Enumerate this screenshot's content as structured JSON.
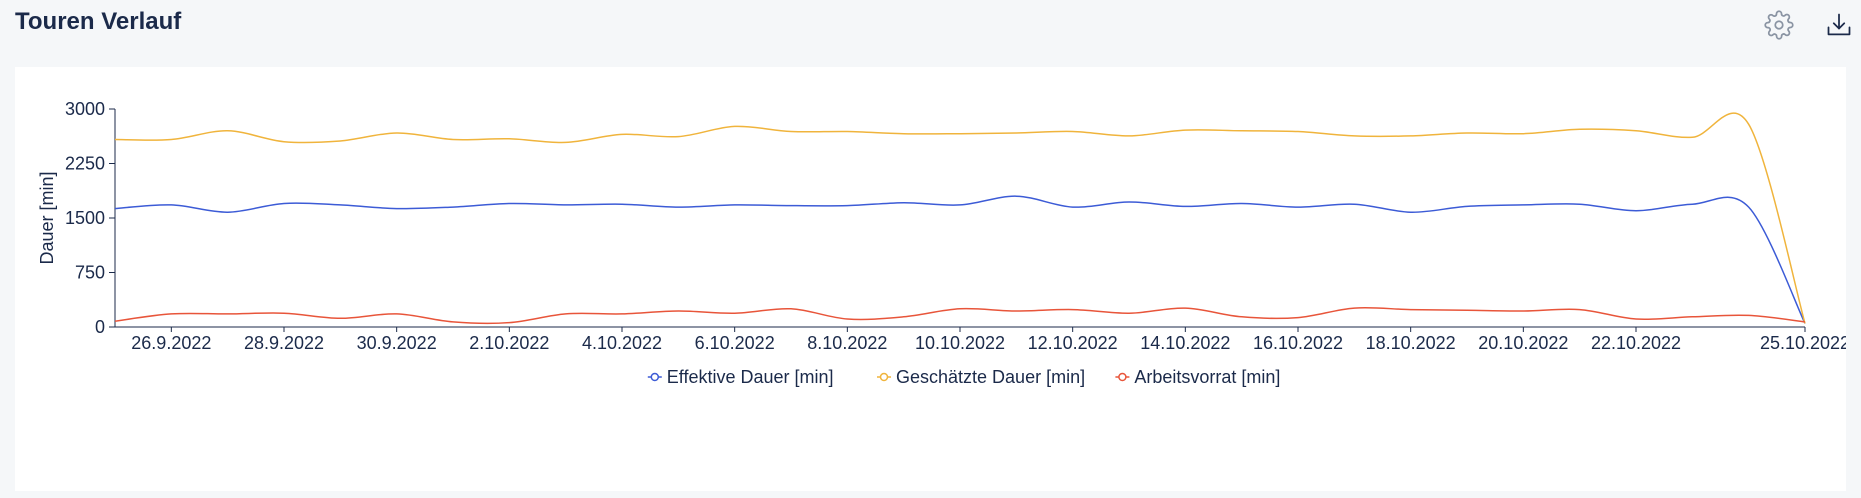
{
  "header": {
    "title": "Touren Verlauf",
    "settings_icon": "gear-icon",
    "download_icon": "download-icon"
  },
  "colors": {
    "axis": "#1b2a4a",
    "text": "#1b2a4a",
    "icon": "#8a94a3",
    "download_icon": "#1b2a4a"
  },
  "chart_data": {
    "type": "line",
    "title": "",
    "xlabel": "",
    "ylabel": "Dauer [min]",
    "ylim": [
      0,
      3000
    ],
    "yticks": [
      0,
      750,
      1500,
      2250,
      3000
    ],
    "grid": false,
    "legend_position": "bottom-center",
    "x_tick_labels": [
      "26.9.2022",
      "28.9.2022",
      "30.9.2022",
      "2.10.2022",
      "4.10.2022",
      "6.10.2022",
      "8.10.2022",
      "10.10.2022",
      "12.10.2022",
      "14.10.2022",
      "16.10.2022",
      "18.10.2022",
      "20.10.2022",
      "22.10.2022",
      "25.10.2022"
    ],
    "x": [
      "25.9.2022",
      "26.9.2022",
      "27.9.2022",
      "28.9.2022",
      "29.9.2022",
      "30.9.2022",
      "1.10.2022",
      "2.10.2022",
      "3.10.2022",
      "4.10.2022",
      "5.10.2022",
      "6.10.2022",
      "7.10.2022",
      "8.10.2022",
      "9.10.2022",
      "10.10.2022",
      "11.10.2022",
      "12.10.2022",
      "13.10.2022",
      "14.10.2022",
      "15.10.2022",
      "16.10.2022",
      "17.10.2022",
      "18.10.2022",
      "19.10.2022",
      "20.10.2022",
      "21.10.2022",
      "22.10.2022",
      "23.10.2022",
      "24.10.2022",
      "25.10.2022"
    ],
    "series": [
      {
        "name": "Effektive Dauer [min]",
        "color": "#3c5bd6",
        "values": [
          1630,
          1680,
          1580,
          1700,
          1680,
          1630,
          1650,
          1700,
          1680,
          1690,
          1650,
          1680,
          1670,
          1670,
          1710,
          1680,
          1800,
          1650,
          1720,
          1660,
          1700,
          1650,
          1690,
          1580,
          1660,
          1680,
          1690,
          1600,
          1690,
          1650,
          50
        ]
      },
      {
        "name": "Geschätzte Dauer [min]",
        "color": "#f0b43c",
        "values": [
          2580,
          2580,
          2700,
          2550,
          2560,
          2670,
          2580,
          2590,
          2540,
          2650,
          2620,
          2760,
          2690,
          2690,
          2660,
          2660,
          2670,
          2690,
          2630,
          2710,
          2700,
          2690,
          2630,
          2630,
          2670,
          2660,
          2720,
          2700,
          2610,
          2790,
          50
        ]
      },
      {
        "name": "Arbeitsvorrat [min]",
        "color": "#e8553a",
        "values": [
          80,
          180,
          180,
          190,
          120,
          180,
          70,
          60,
          180,
          180,
          220,
          190,
          250,
          110,
          140,
          250,
          220,
          240,
          190,
          260,
          140,
          130,
          260,
          240,
          230,
          220,
          240,
          110,
          140,
          160,
          70
        ]
      }
    ]
  }
}
